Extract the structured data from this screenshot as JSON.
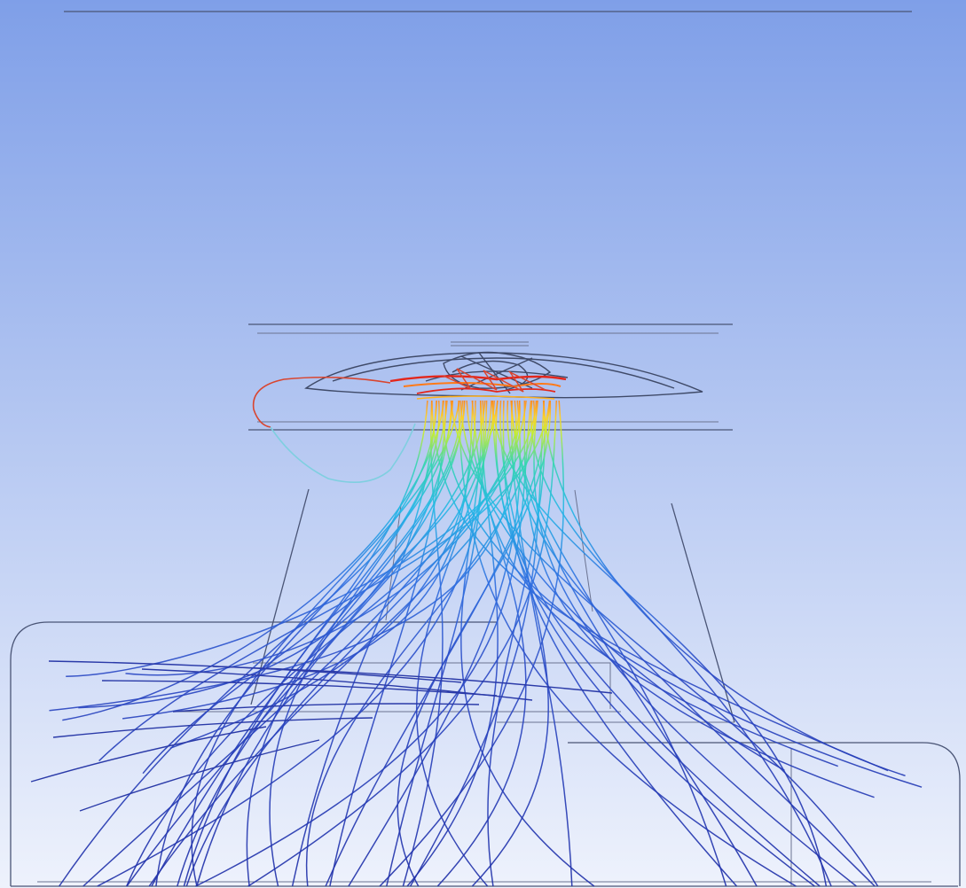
{
  "scene": {
    "type": "cfd-streamline-visualization",
    "background": {
      "top_color": "#7f9fe8",
      "bottom_color": "#eef2fc"
    },
    "color_scale": [
      "#1f2fa8",
      "#2f6fe0",
      "#23b6e6",
      "#35d6b0",
      "#c8ee2a",
      "#ffd21e",
      "#ff7a18",
      "#e3261b"
    ],
    "geometry_color": "#4a5576",
    "streamline_count": 60,
    "stray_loop_colors": [
      "#d9452f",
      "#7fcfe0"
    ]
  }
}
